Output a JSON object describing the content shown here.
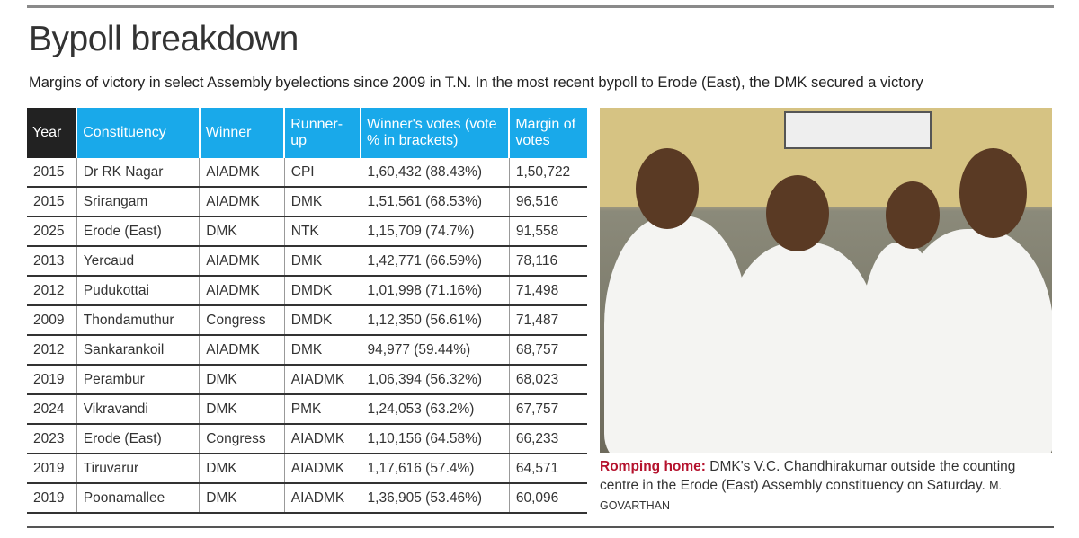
{
  "title": "Bypoll breakdown",
  "subtitle": "Margins of victory in select Assembly byelections since 2009 in T.N. In the most recent bypoll to Erode (East), the DMK secured a victory",
  "table": {
    "headers": [
      "Year",
      "Constituency",
      "Winner",
      "Runner-up",
      "Winner's votes (vote % in brackets)",
      "Margin of votes"
    ],
    "rows": [
      [
        "2015",
        "Dr RK Nagar",
        "AIADMK",
        "CPI",
        "1,60,432 (88.43%)",
        "1,50,722"
      ],
      [
        "2015",
        "Srirangam",
        "AIADMK",
        "DMK",
        "1,51,561 (68.53%)",
        "96,516"
      ],
      [
        "2025",
        "Erode (East)",
        "DMK",
        "NTK",
        "1,15,709 (74.7%)",
        "91,558"
      ],
      [
        "2013",
        "Yercaud",
        "AIADMK",
        "DMK",
        "1,42,771 (66.59%)",
        "78,116"
      ],
      [
        "2012",
        "Pudukottai",
        "AIADMK",
        "DMDK",
        "1,01,998 (71.16%)",
        "71,498"
      ],
      [
        "2009",
        "Thondamuthur",
        "Congress",
        "DMDK",
        "1,12,350 (56.61%)",
        "71,487"
      ],
      [
        "2012",
        "Sankarankoil",
        "AIADMK",
        "DMK",
        "94,977 (59.44%)",
        "68,757"
      ],
      [
        "2019",
        "Perambur",
        "DMK",
        "AIADMK",
        "1,06,394 (56.32%)",
        "68,023"
      ],
      [
        "2024",
        "Vikravandi",
        "DMK",
        "PMK",
        "1,24,053 (63.2%)",
        "67,757"
      ],
      [
        "2023",
        "Erode (East)",
        "Congress",
        "AIADMK",
        "1,10,156 (64.58%)",
        "66,233"
      ],
      [
        "2019",
        "Tiruvarur",
        "DMK",
        "AIADMK",
        "1,17,616 (57.4%)",
        "64,571"
      ],
      [
        "2019",
        "Poonamallee",
        "DMK",
        "AIADMK",
        "1,36,905 (53.46%)",
        "60,096"
      ]
    ]
  },
  "caption": {
    "lead": "Romping home:",
    "text": " DMK's V.C. Chandhirakumar outside the counting centre in the Erode (East) Assembly constituency on Saturday. ",
    "credit": "M. GOVARTHAN"
  },
  "colors": {
    "header": "#19a9ea",
    "year_header": "#222222",
    "caption_lead": "#b5122d"
  }
}
